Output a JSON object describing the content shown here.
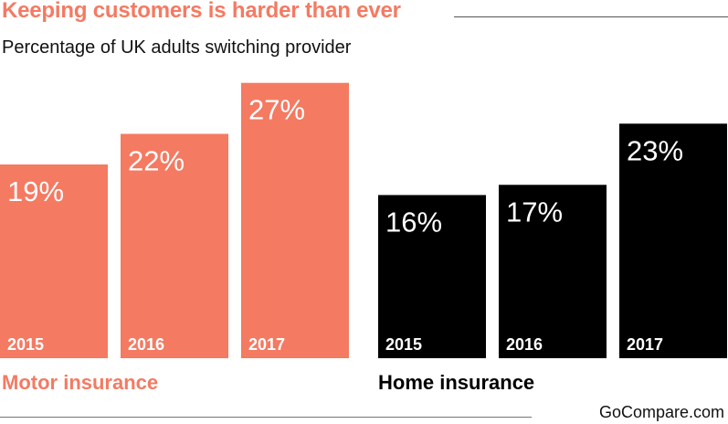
{
  "title": "Keeping customers is harder than ever",
  "subtitle": "Percentage of UK adults switching provider",
  "source": "GoCompare.com",
  "colors": {
    "motor": "#f47a62",
    "home": "#000000",
    "bar_text": "#ffffff"
  },
  "chart_data": {
    "type": "bar",
    "title": "Keeping customers is harder than ever",
    "subtitle": "Percentage of UK adults switching provider",
    "ylim": [
      0,
      30
    ],
    "grid": false,
    "groups": [
      {
        "name": "Motor insurance",
        "color": "#f47a62",
        "categories": [
          "2015",
          "2016",
          "2017"
        ],
        "values": [
          19,
          22,
          27
        ],
        "labels": [
          "19%",
          "22%",
          "27%"
        ]
      },
      {
        "name": "Home insurance",
        "color": "#000000",
        "categories": [
          "2015",
          "2016",
          "2017"
        ],
        "values": [
          16,
          17,
          23
        ],
        "labels": [
          "16%",
          "17%",
          "23%"
        ]
      }
    ]
  }
}
